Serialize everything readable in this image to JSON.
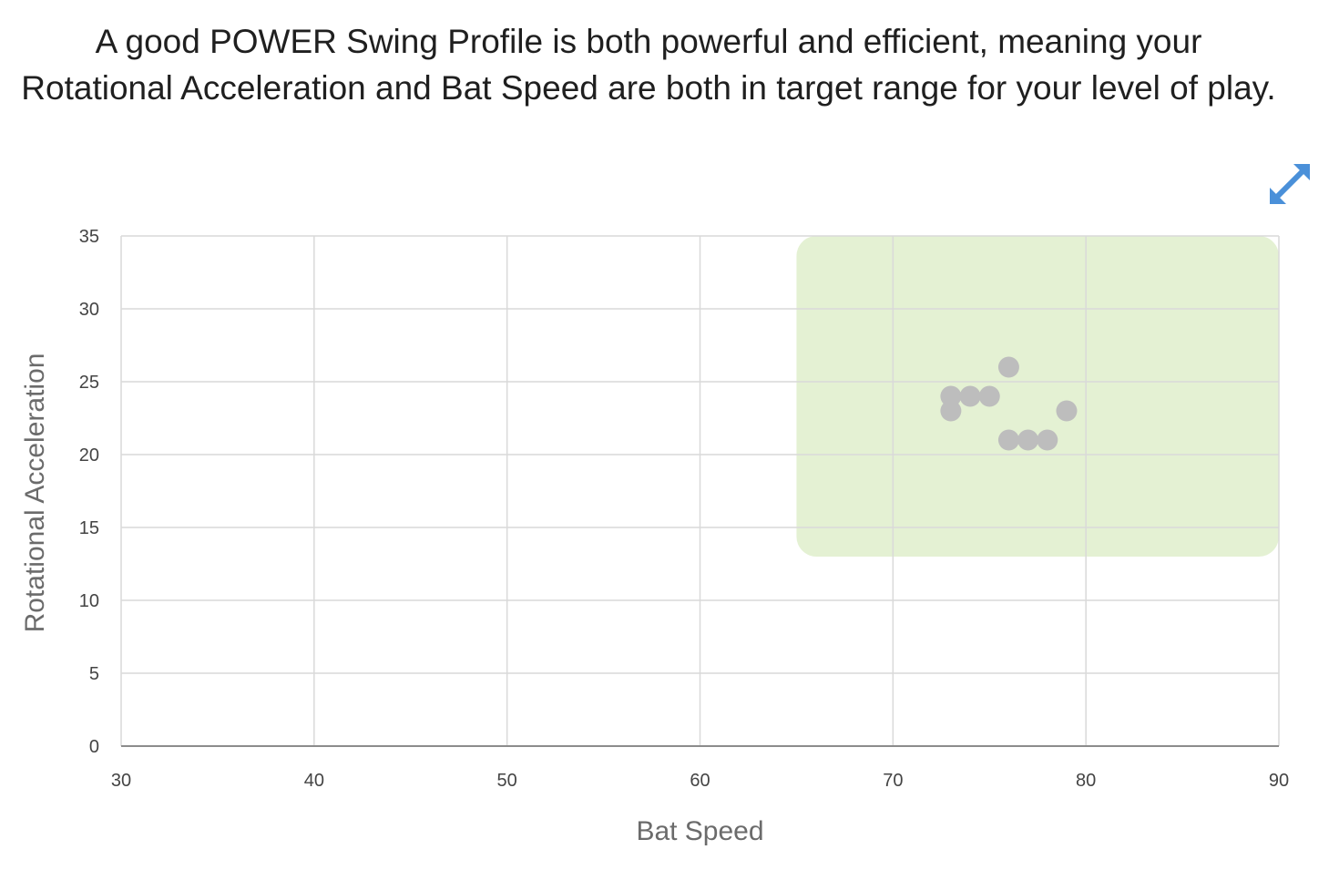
{
  "header": {
    "description": "A good POWER Swing Profile is both powerful and efficient, meaning your Rotational Acceleration and Bat Speed are both in target range for your level of play."
  },
  "controls": {
    "expand_icon": "expand-diagonal-arrows-icon",
    "icon_color": "#4a90d9"
  },
  "chart_data": {
    "type": "scatter",
    "xlabel": "Bat Speed",
    "ylabel": "Rotational Acceleration",
    "xlim": [
      30,
      90
    ],
    "ylim": [
      0,
      35
    ],
    "xticks": [
      30,
      40,
      50,
      60,
      70,
      80,
      90
    ],
    "yticks": [
      0,
      5,
      10,
      15,
      20,
      25,
      30,
      35
    ],
    "grid": true,
    "target_range": {
      "x": [
        65,
        90
      ],
      "y": [
        13,
        35
      ],
      "color": "#e4f1d3"
    },
    "point_color": "#bdbdbd",
    "points": [
      {
        "x": 73,
        "y": 24
      },
      {
        "x": 73,
        "y": 23
      },
      {
        "x": 74,
        "y": 24
      },
      {
        "x": 75,
        "y": 24
      },
      {
        "x": 76,
        "y": 26
      },
      {
        "x": 76,
        "y": 21
      },
      {
        "x": 77,
        "y": 21
      },
      {
        "x": 78,
        "y": 21
      },
      {
        "x": 79,
        "y": 23
      }
    ]
  }
}
